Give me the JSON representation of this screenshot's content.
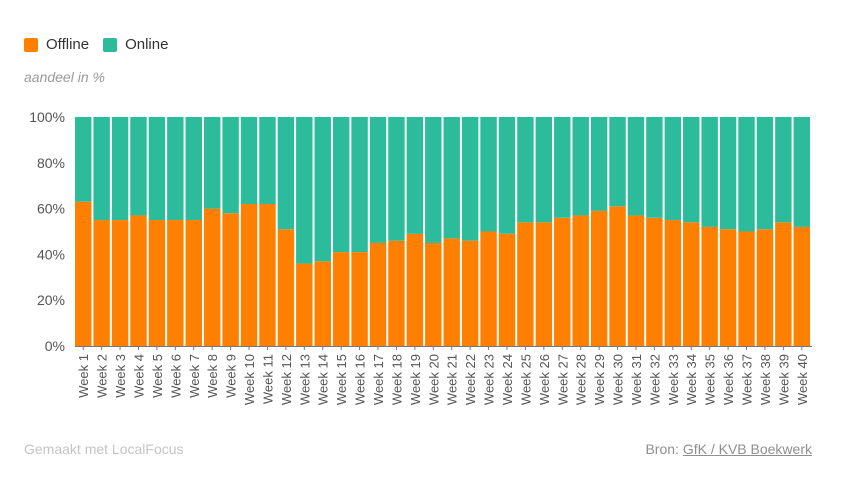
{
  "legend": [
    {
      "label": "Offline",
      "color": "#ff8000"
    },
    {
      "label": "Online",
      "color": "#2dbc9b"
    }
  ],
  "unit_label": "aandeel in %",
  "footer": {
    "made_with": "Gemaakt met LocalFocus",
    "source_prefix": "Bron:",
    "source_link": "GfK / KVB Boekwerk"
  },
  "chart_data": {
    "type": "bar",
    "stacked": true,
    "normalized_percent": true,
    "categories": [
      "Week 1",
      "Week 2",
      "Week 3",
      "Week 4",
      "Week 5",
      "Week 6",
      "Week 7",
      "Week 8",
      "Week 9",
      "Week 10",
      "Week 11",
      "Week 12",
      "Week 13",
      "Week 14",
      "Week 15",
      "Week 16",
      "Week 17",
      "Week 18",
      "Week 19",
      "Week 20",
      "Week 21",
      "Week 22",
      "Week 23",
      "Week 24",
      "Week 25",
      "Week 26",
      "Week 27",
      "Week 28",
      "Week 29",
      "Week 30",
      "Week 31",
      "Week 32",
      "Week 33",
      "Week 34",
      "Week 35",
      "Week 36",
      "Week 37",
      "Week 38",
      "Week 39",
      "Week 40"
    ],
    "series": [
      {
        "name": "Offline",
        "color": "#ff8000",
        "values": [
          63,
          55,
          55,
          57,
          55,
          55,
          55,
          60,
          58,
          62,
          62,
          51,
          36,
          37,
          41,
          41,
          45,
          46,
          49,
          45,
          47,
          46,
          50,
          49,
          54,
          54,
          56,
          57,
          59,
          61,
          57,
          56,
          55,
          54,
          52,
          51,
          50,
          51,
          54,
          52
        ]
      },
      {
        "name": "Online",
        "color": "#2dbc9b",
        "values": [
          37,
          45,
          45,
          43,
          45,
          45,
          45,
          40,
          42,
          38,
          38,
          49,
          64,
          63,
          59,
          59,
          55,
          54,
          51,
          55,
          53,
          54,
          50,
          51,
          46,
          46,
          44,
          43,
          41,
          39,
          43,
          44,
          45,
          46,
          48,
          49,
          50,
          49,
          46,
          48
        ]
      }
    ],
    "yticks": [
      "0%",
      "20%",
      "40%",
      "60%",
      "80%",
      "100%"
    ],
    "ylim": [
      0,
      100
    ],
    "grid": false,
    "legend_position": "top-left"
  }
}
